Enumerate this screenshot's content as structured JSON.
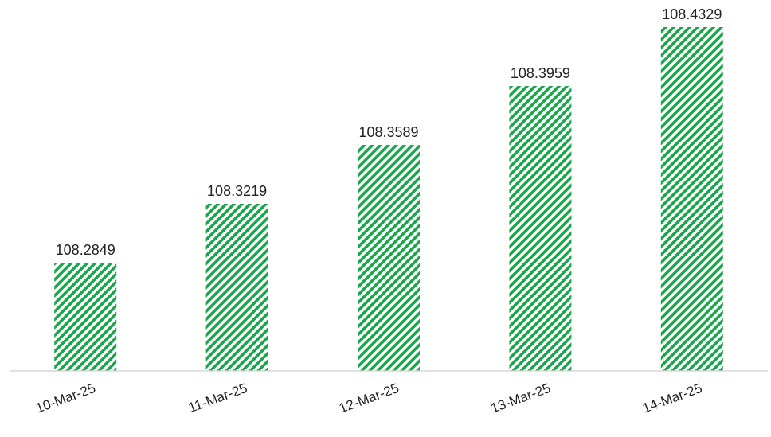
{
  "chart_data": {
    "type": "bar",
    "title": "",
    "xlabel": "",
    "ylabel": "",
    "categories": [
      "10-Mar-25",
      "11-Mar-25",
      "12-Mar-25",
      "13-Mar-25",
      "14-Mar-25"
    ],
    "values": [
      108.2849,
      108.3219,
      108.3589,
      108.3959,
      108.4329
    ],
    "data_labels": [
      "108.2849",
      "108.3219",
      "108.3589",
      "108.3959",
      "108.4329"
    ],
    "ylim": [
      108.2169,
      108.4329
    ],
    "grid": false,
    "legend": "none",
    "colors": {
      "bar_stripe": "#1aa64a",
      "bar_background": "#ffffff",
      "axis_line": "#d9d9d9",
      "text": "#222222"
    }
  }
}
